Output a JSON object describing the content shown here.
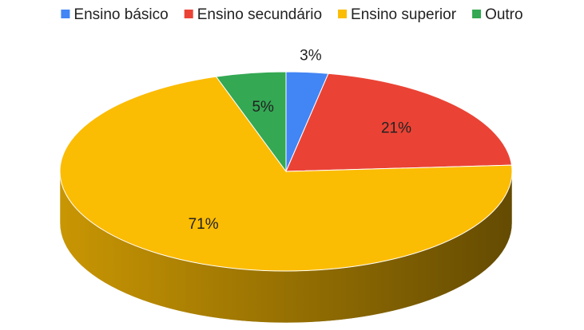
{
  "chart_data": {
    "type": "pie",
    "categories": [
      "Ensino básico",
      "Ensino secundário",
      "Ensino superior",
      "Outro"
    ],
    "values": [
      3,
      21,
      71,
      5
    ],
    "value_labels": [
      "3%",
      "21%",
      "71%",
      "5%"
    ],
    "colors": [
      "#4285f4",
      "#ea4335",
      "#fbbc04",
      "#34a853"
    ],
    "legend": "top"
  }
}
